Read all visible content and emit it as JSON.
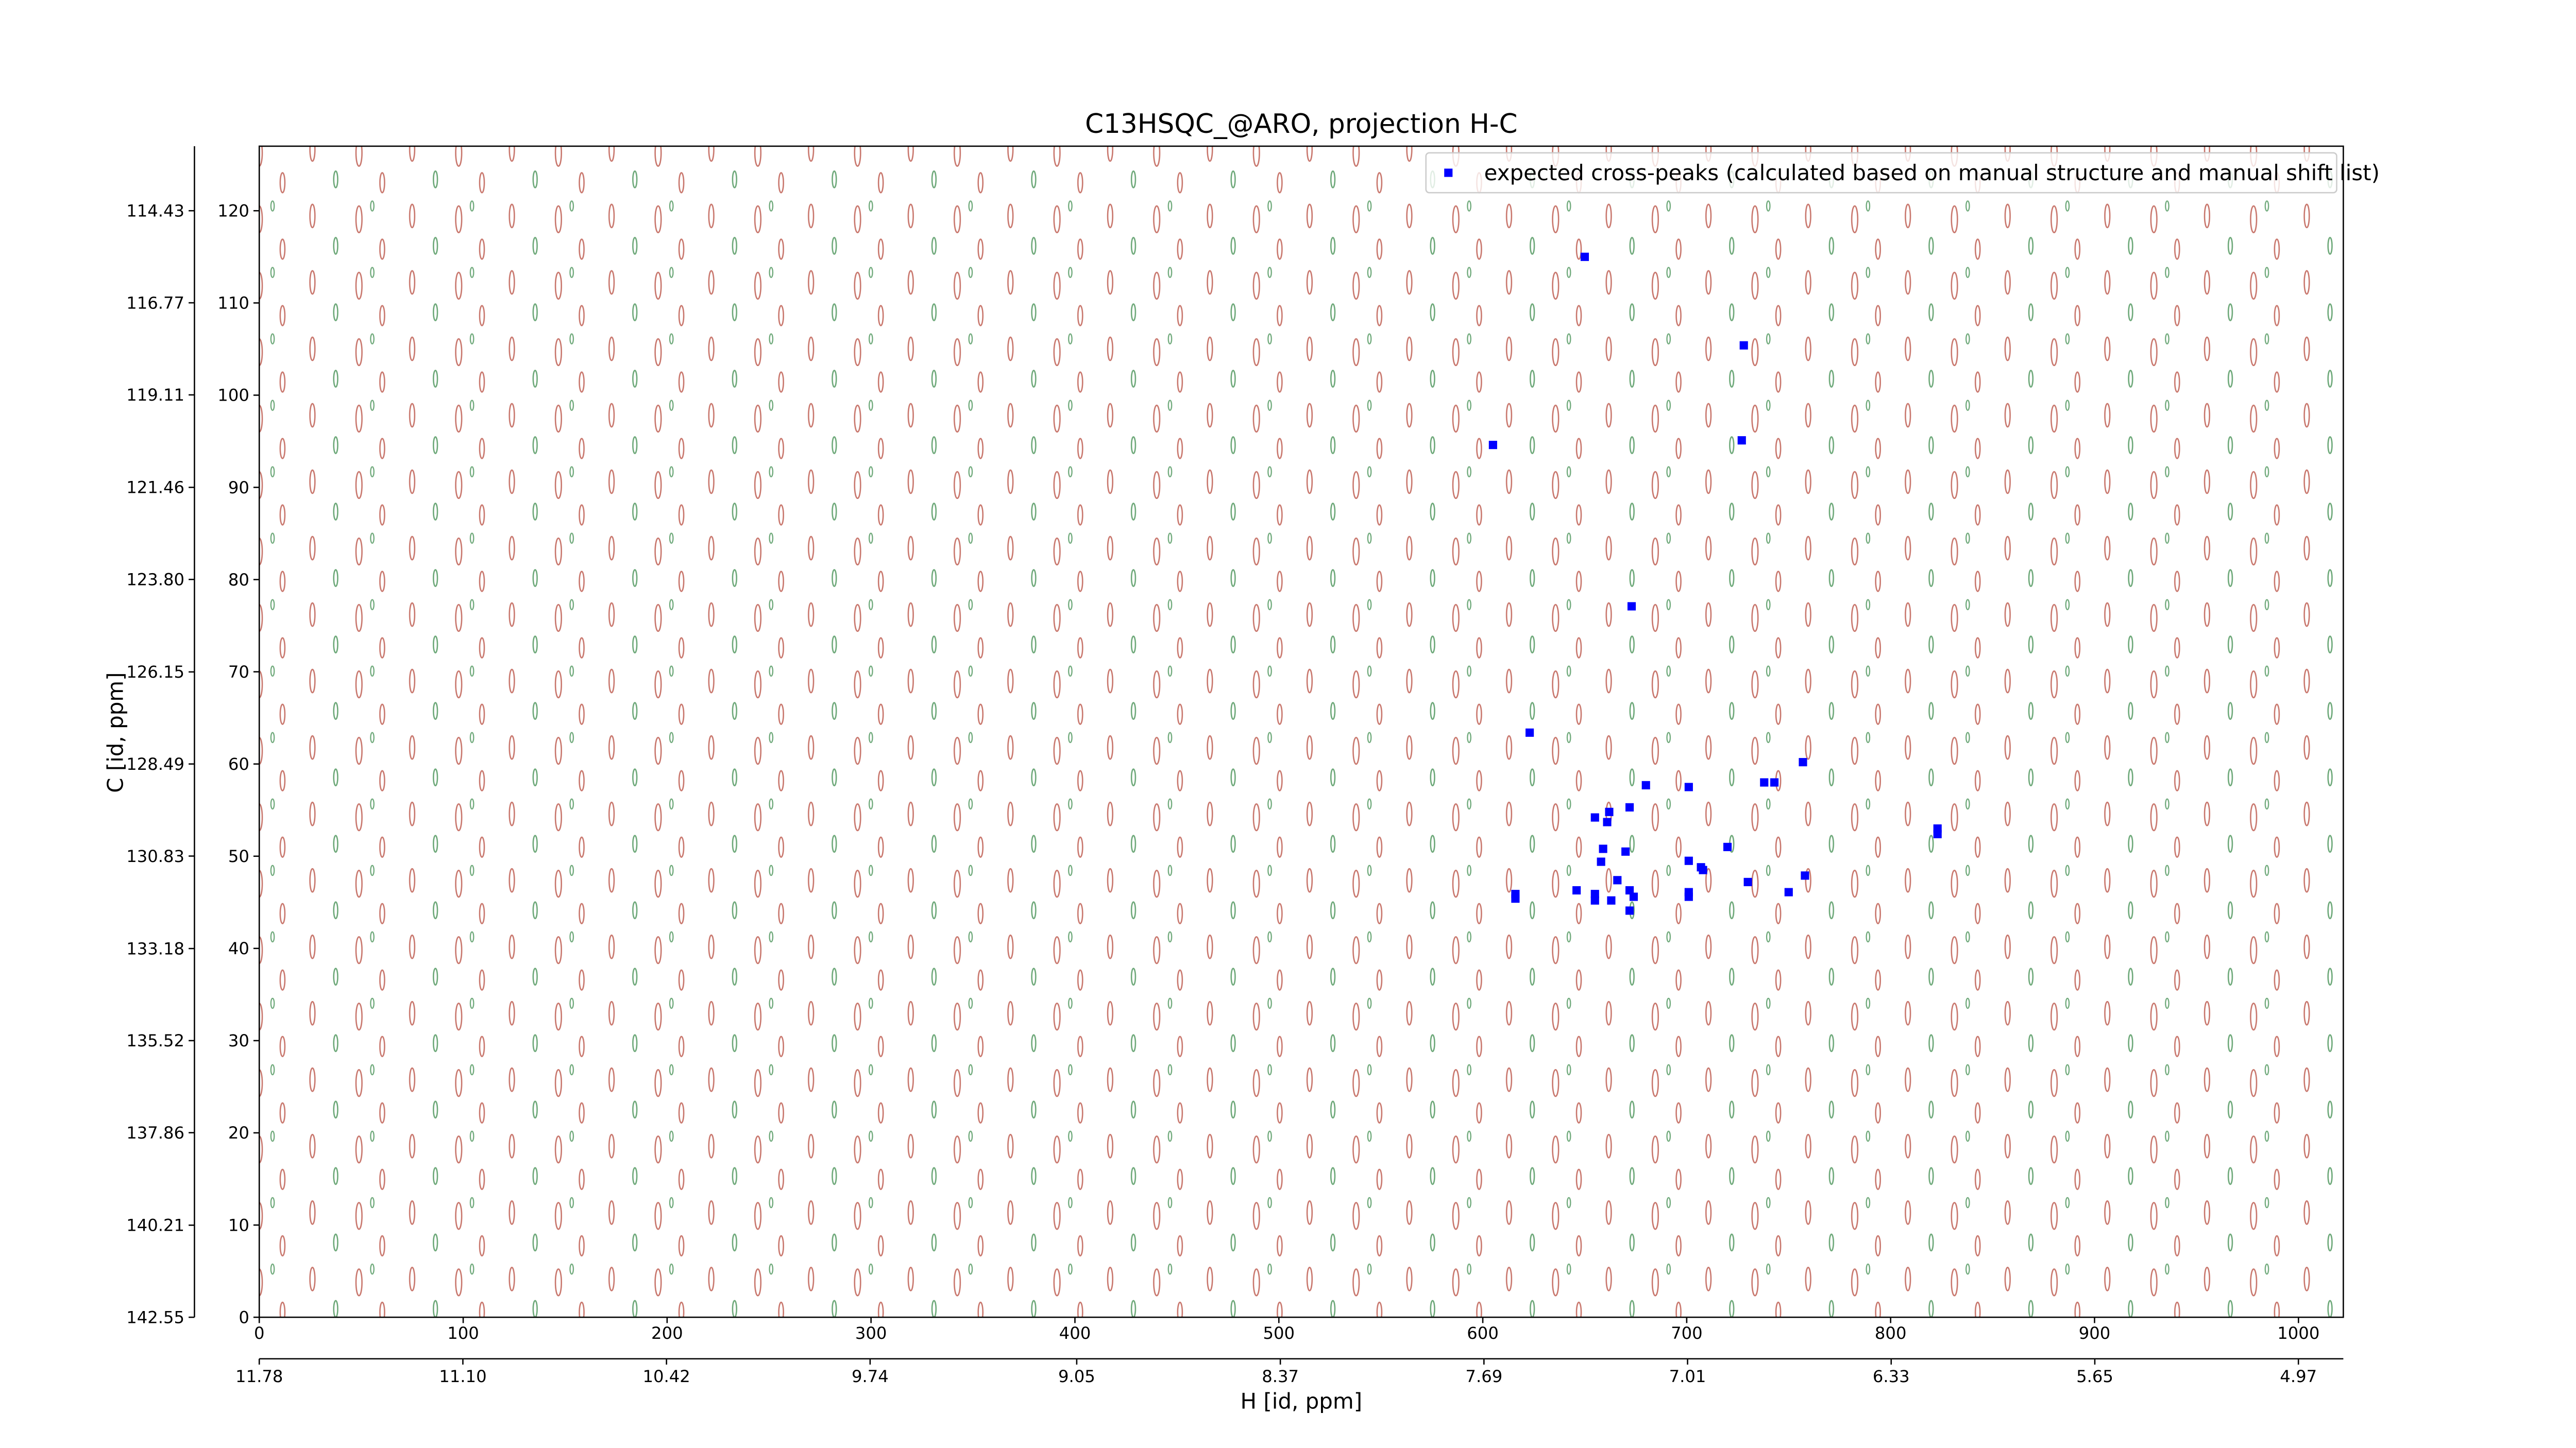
{
  "chart_data": {
    "type": "scatter",
    "title": "C13HSQC_@ARO, projection H-C",
    "xlabel": "H [id, ppm]",
    "ylabel": "C [id, ppm]",
    "legend": "upper right",
    "xlim": [
      0,
      1022
    ],
    "ylim": [
      0,
      127
    ],
    "xticks": [
      0,
      100,
      200,
      300,
      400,
      500,
      600,
      700,
      800,
      900,
      1000
    ],
    "yticks": [
      0,
      10,
      20,
      30,
      40,
      50,
      60,
      70,
      80,
      90,
      100,
      110,
      120
    ],
    "x2lim": [
      11.78,
      4.82
    ],
    "x2ticks": [
      11.78,
      {
        "value": 11.1,
        "label": "11.10"
      },
      10.42,
      9.74,
      9.05,
      8.37,
      7.69,
      7.01,
      6.33,
      5.65,
      4.97
    ],
    "y2lim": [
      142.55,
      112.79
    ],
    "y2ticks": [
      142.55,
      140.21,
      137.86,
      135.52,
      133.18,
      130.83,
      128.49,
      126.15,
      {
        "value": 123.8,
        "label": "123.80"
      },
      121.46,
      119.11,
      116.77,
      114.43
    ],
    "series": [
      {
        "name": "expected cross-peaks (calculated based on manual structure and manual shift list)",
        "color": "#0000ff",
        "x": [
          650,
          605,
          728,
          727,
          673,
          623,
          680,
          701,
          738,
          743,
          757,
          823,
          823,
          672,
          662,
          655,
          661,
          659,
          670,
          720,
          701,
          707,
          708,
          758,
          730,
          658,
          666,
          646,
          655,
          655,
          663,
          672,
          674,
          672,
          701,
          701,
          750,
          616,
          616
        ],
        "y": [
          115,
          94.6,
          105.4,
          95.1,
          77.1,
          63.4,
          57.7,
          57.5,
          58.0,
          58.0,
          60.2,
          53.0,
          52.4,
          55.3,
          54.8,
          54.2,
          53.7,
          50.8,
          50.5,
          51.0,
          49.5,
          48.8,
          48.5,
          47.9,
          47.2,
          49.4,
          47.4,
          46.3,
          45.9,
          45.2,
          45.2,
          46.3,
          45.6,
          44.1,
          46.1,
          45.6,
          46.1,
          45.9,
          45.4
        ]
      }
    ]
  }
}
